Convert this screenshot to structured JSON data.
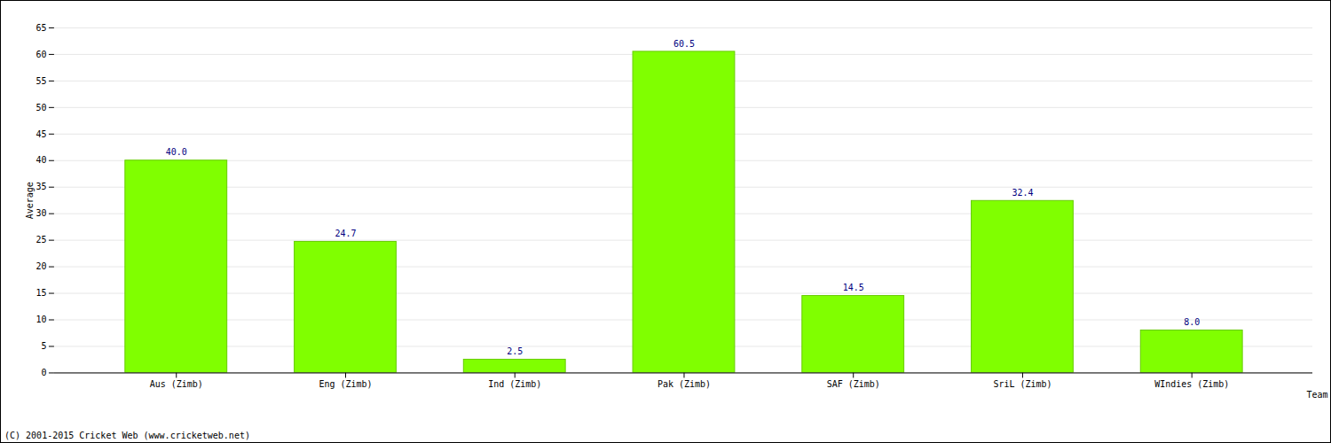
{
  "chart_data": {
    "type": "bar",
    "categories": [
      "Aus (Zimb)",
      "Eng (Zimb)",
      "Ind (Zimb)",
      "Pak (Zimb)",
      "SAF (Zimb)",
      "SriL (Zimb)",
      "WIndies (Zimb)"
    ],
    "values": [
      40.0,
      24.7,
      2.5,
      60.5,
      14.5,
      32.4,
      8.0
    ],
    "value_labels": [
      "40.0",
      "24.7",
      "2.5",
      "60.5",
      "14.5",
      "32.4",
      "8.0"
    ],
    "data_labels": true,
    "color": "#80ff00",
    "x_label": "Team",
    "y_label": "Average",
    "caption": "(C) 2001-2015 Cricket Web (www.cricketweb.net)",
    "ylim": [
      0,
      65
    ],
    "yticks": [
      0,
      5,
      10,
      15,
      20,
      25,
      30,
      35,
      40,
      45,
      50,
      55,
      60,
      65
    ],
    "grid": true
  }
}
